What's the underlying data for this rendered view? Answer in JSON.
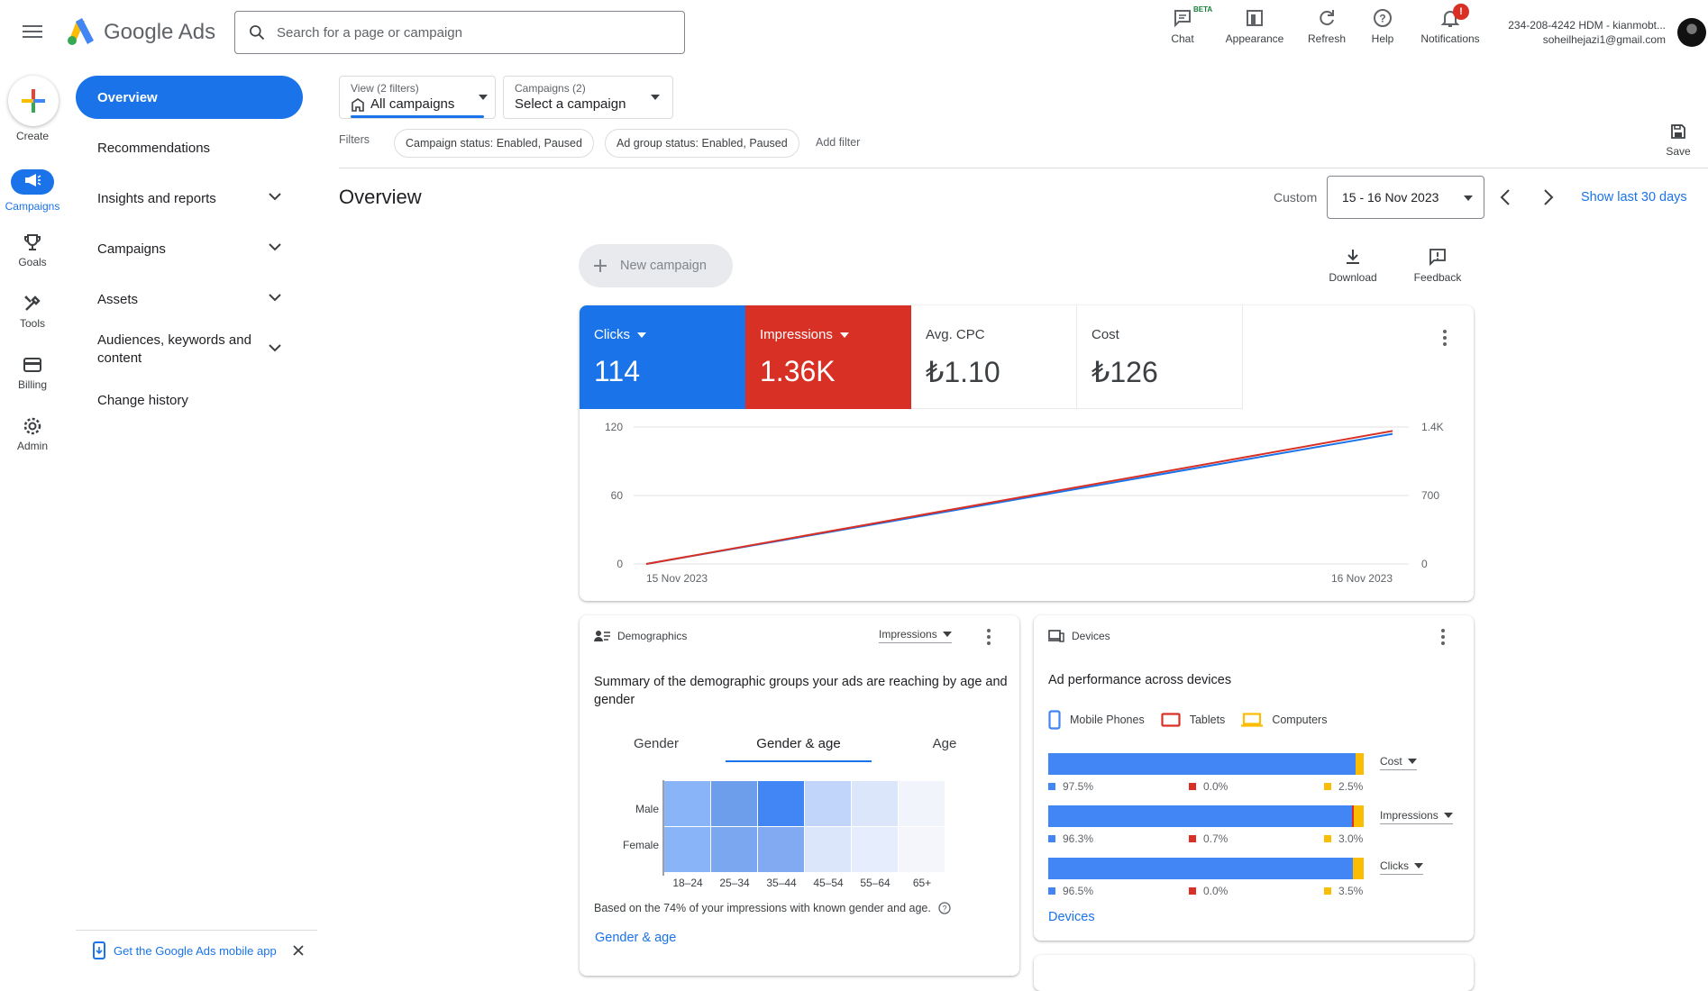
{
  "header": {
    "brand": "Google Ads",
    "search_placeholder": "Search for a page or campaign",
    "tools": {
      "chat": "Chat",
      "chat_badge": "BETA",
      "appearance": "Appearance",
      "refresh": "Refresh",
      "help": "Help",
      "notifications": "Notifications",
      "notifications_badge": "!"
    },
    "account_line1": "234-208-4242 HDM - kianmobt...",
    "account_line2": "soheilhejazi1@gmail.com"
  },
  "rail": {
    "create": "Create",
    "campaigns": "Campaigns",
    "goals": "Goals",
    "tools": "Tools",
    "billing": "Billing",
    "admin": "Admin"
  },
  "nav": {
    "overview": "Overview",
    "recommendations": "Recommendations",
    "insights": "Insights and reports",
    "campaigns": "Campaigns",
    "assets": "Assets",
    "audiences": "Audiences, keywords and content",
    "change_history": "Change history"
  },
  "mobile_app": "Get the Google Ads mobile app",
  "filters": {
    "view_label": "View (2 filters)",
    "view_value": "All campaigns",
    "campaigns_label": "Campaigns (2)",
    "campaigns_value": "Select a campaign",
    "filters_label": "Filters",
    "chip1": "Campaign status: Enabled, Paused",
    "chip2": "Ad group status: Enabled, Paused",
    "add_filter": "Add filter",
    "save": "Save"
  },
  "page": {
    "title": "Overview",
    "date_custom": "Custom",
    "date_range": "15 - 16 Nov 2023",
    "show_last": "Show last 30 days",
    "new_campaign": "New campaign",
    "download": "Download",
    "feedback": "Feedback"
  },
  "metrics": {
    "clicks_label": "Clicks",
    "clicks_value": "114",
    "impressions_label": "Impressions",
    "impressions_value": "1.36K",
    "cpc_label": "Avg. CPC",
    "cpc_value": "₺1.10",
    "cost_label": "Cost",
    "cost_value": "₺126",
    "clicks_color": "#1a73e8",
    "impressions_color": "#d93025"
  },
  "chart_data": {
    "type": "line",
    "x": [
      "15 Nov 2023",
      "16 Nov 2023"
    ],
    "series": [
      {
        "name": "Clicks",
        "values": [
          0,
          114
        ],
        "axis": "left",
        "color": "#1a73e8"
      },
      {
        "name": "Impressions",
        "values": [
          0,
          1360
        ],
        "axis": "right",
        "color": "#d93025"
      }
    ],
    "left_ticks": [
      "120",
      "60",
      "0"
    ],
    "right_ticks": [
      "1.4K",
      "700",
      "0"
    ],
    "ylim_left": [
      0,
      120
    ],
    "ylim_right": [
      0,
      1400
    ],
    "grid": true
  },
  "demographics": {
    "title": "Demographics",
    "metric_select": "Impressions",
    "summary": "Summary of the demographic groups your ads are reaching by age and gender",
    "tabs": [
      "Gender",
      "Gender & age",
      "Age"
    ],
    "rows": [
      "Male",
      "Female"
    ],
    "age_groups": [
      "18–24",
      "25–34",
      "35–44",
      "45–54",
      "55–64",
      "65+"
    ],
    "male_colors": [
      "#8ab4f8",
      "#6d9eeb",
      "#4285f4",
      "#c1d5fa",
      "#dbe6fb",
      "#f1f4fb"
    ],
    "female_colors": [
      "#8ab4f8",
      "#7ba6f0",
      "#82aaf2",
      "#dbe6fb",
      "#e6edfc",
      "#f4f6fb"
    ],
    "footnote": "Based on the 74% of your impressions with known gender and age.",
    "link": "Gender & age"
  },
  "devices": {
    "title": "Devices",
    "summary": "Ad performance across devices",
    "legend": [
      "Mobile Phones",
      "Tablets",
      "Computers"
    ],
    "colors": {
      "mobile": "#4285f4",
      "tablets": "#d93025",
      "computers": "#fbbc04"
    },
    "rows": [
      {
        "label": "Cost",
        "mobile": "97.5%",
        "tablets": "0.0%",
        "computers": "2.5%",
        "m": 97.5,
        "t": 0.0,
        "c": 2.5
      },
      {
        "label": "Impressions",
        "mobile": "96.3%",
        "tablets": "0.7%",
        "computers": "3.0%",
        "m": 96.3,
        "t": 0.7,
        "c": 3.0
      },
      {
        "label": "Clicks",
        "mobile": "96.5%",
        "tablets": "0.0%",
        "computers": "3.5%",
        "m": 96.5,
        "t": 0.0,
        "c": 3.5
      }
    ],
    "link": "Devices"
  }
}
